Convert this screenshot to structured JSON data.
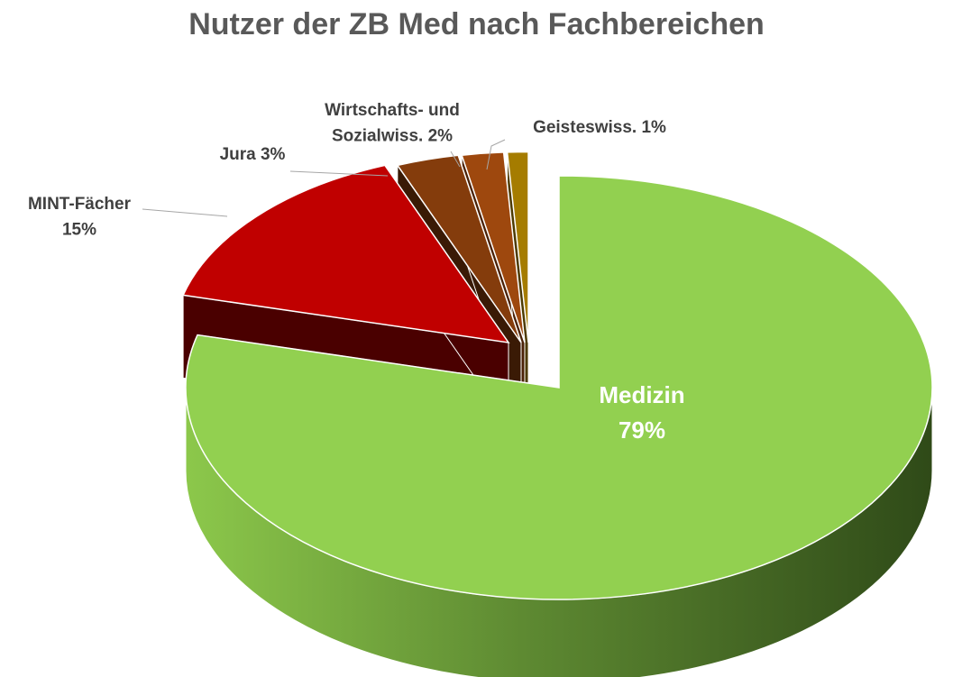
{
  "chart_data": {
    "type": "pie",
    "title": "Nutzer der ZB Med nach Fachbereichen",
    "slices": [
      {
        "name": "Medizin",
        "value": 79,
        "label_lines": [
          "Medizin",
          "79%"
        ],
        "color": "#92D050",
        "side": "#4E6B2A",
        "label_color": "#ffffff"
      },
      {
        "name": "MINT-Fächer",
        "value": 15,
        "label_lines": [
          "MINT-Fächer",
          "15%"
        ],
        "color": "#C00000",
        "side": "#4A0000",
        "label_color": "#404040"
      },
      {
        "name": "Jura",
        "value": 3,
        "label_lines": [
          "Jura 3%"
        ],
        "color": "#843C0C",
        "side": "#3A1A05",
        "label_color": "#404040"
      },
      {
        "name": "Wirtschafts- und Sozialwiss.",
        "value": 2,
        "label_lines": [
          "Wirtschafts- und",
          "Sozialwiss. 2%"
        ],
        "color": "#9E480E",
        "side": "#4A2106",
        "label_color": "#404040"
      },
      {
        "name": "Geisteswiss.",
        "value": 1,
        "label_lines": [
          "Geisteswiss. 1%"
        ],
        "color": "#A57C00",
        "side": "#4D3A00",
        "label_color": "#404040"
      }
    ],
    "view": "3d-exploded",
    "legend": "none"
  }
}
